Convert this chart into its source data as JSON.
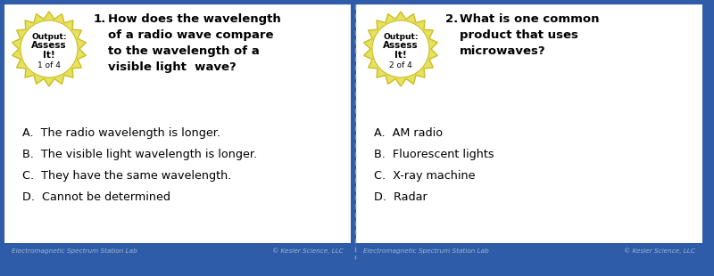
{
  "bg_color": "#2e5ca8",
  "card_bg": "#ffffff",
  "footer_bg": "#2e5ca8",
  "footer_text_color": "#a0b8d8",
  "footer_left": "Electromagnetic Spectrum Station Lab",
  "footer_right": "© Kesler Science, LLC",
  "badge_outer_color": "#e8e060",
  "badge_inner_color": "#ffffff",
  "badge_edge_color": "#c8c020",
  "question_font_size": 9.5,
  "answer_font_size": 9.2,
  "cards": [
    {
      "number": "1.",
      "badge_line1": "Output:",
      "badge_line2": "Assess",
      "badge_line3": "It!",
      "badge_line4": "1 of 4",
      "question": "How does the wavelength\nof a radio wave compare\nto the wavelength of a\nvisible light  wave?",
      "answers": [
        "A.  The radio wavelength is longer.",
        "B.  The visible light wavelength is longer.",
        "C.  They have the same wavelength.",
        "D.  Cannot be determined"
      ]
    },
    {
      "number": "2.",
      "badge_line1": "Output:",
      "badge_line2": "Assess",
      "badge_line3": "It!",
      "badge_line4": "2 of 4",
      "question": "What is one common\nproduct that uses\nmicrowaves?",
      "answers": [
        "A.  AM radio",
        "B.  Fluorescent lights",
        "C.  X-ray machine",
        "D.  Radar"
      ]
    }
  ]
}
